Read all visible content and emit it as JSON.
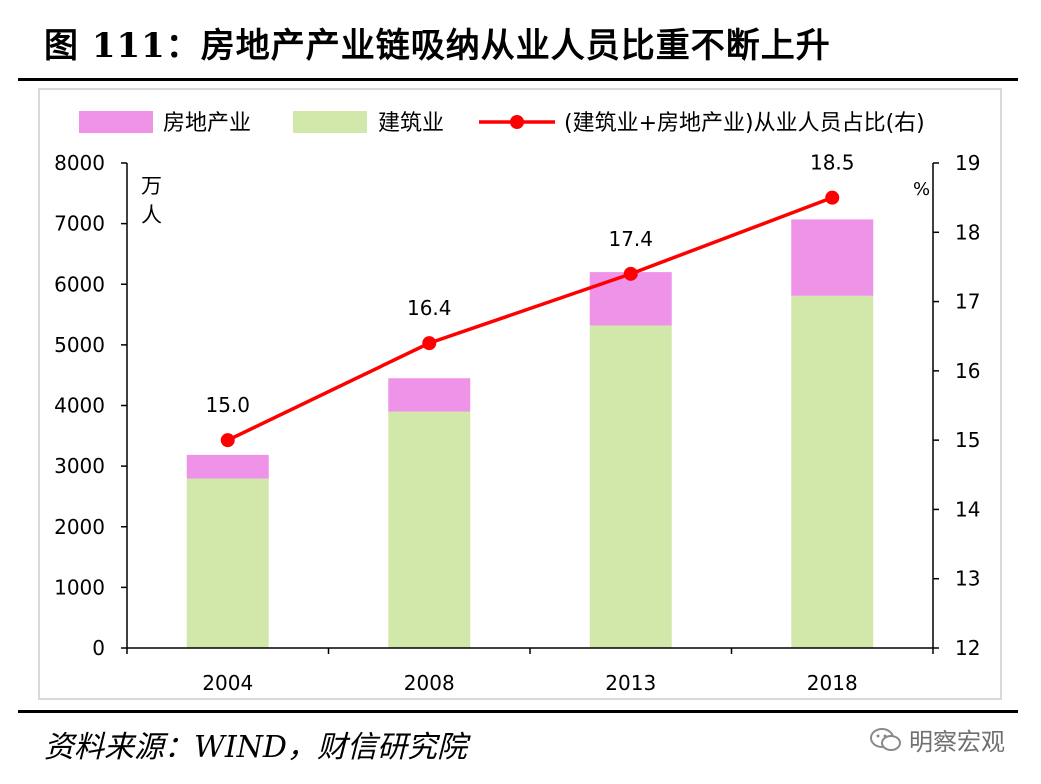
{
  "figure": {
    "title": "图 111：房地产产业链吸纳从业人员比重不断上升",
    "source": "资料来源：WIND，财信研究院",
    "watermark": "明察宏观"
  },
  "chart_data": {
    "type": "bar",
    "stacked": true,
    "categories": [
      "2004",
      "2008",
      "2013",
      "2018"
    ],
    "series": [
      {
        "name": "建筑业",
        "type": "bar",
        "axis": "left",
        "color": "#d2e8ab",
        "values": [
          2795,
          3900,
          5320,
          5810
        ]
      },
      {
        "name": "房地产业",
        "type": "bar",
        "axis": "left",
        "color": "#ee93e8",
        "values": [
          390,
          550,
          880,
          1260
        ]
      },
      {
        "name": "(建筑业+房地产业)从业人员占比(右)",
        "type": "line",
        "axis": "right",
        "color": "#ff0000",
        "values": [
          15.0,
          16.4,
          17.4,
          18.5
        ],
        "labels": [
          "15.0",
          "16.4",
          "17.4",
          "18.5"
        ]
      }
    ],
    "legend_order": [
      "房地产业",
      "建筑业",
      "(建筑业+房地产业)从业人员占比(右)"
    ],
    "y_left": {
      "min": 0,
      "max": 8000,
      "ticks": [
        0,
        1000,
        2000,
        3000,
        4000,
        5000,
        6000,
        7000,
        8000
      ],
      "unit": "万人"
    },
    "y_right": {
      "min": 12,
      "max": 19,
      "ticks": [
        12,
        13,
        14,
        15,
        16,
        17,
        18,
        19
      ],
      "unit": "%"
    },
    "legend_position": "top",
    "grid": false
  }
}
